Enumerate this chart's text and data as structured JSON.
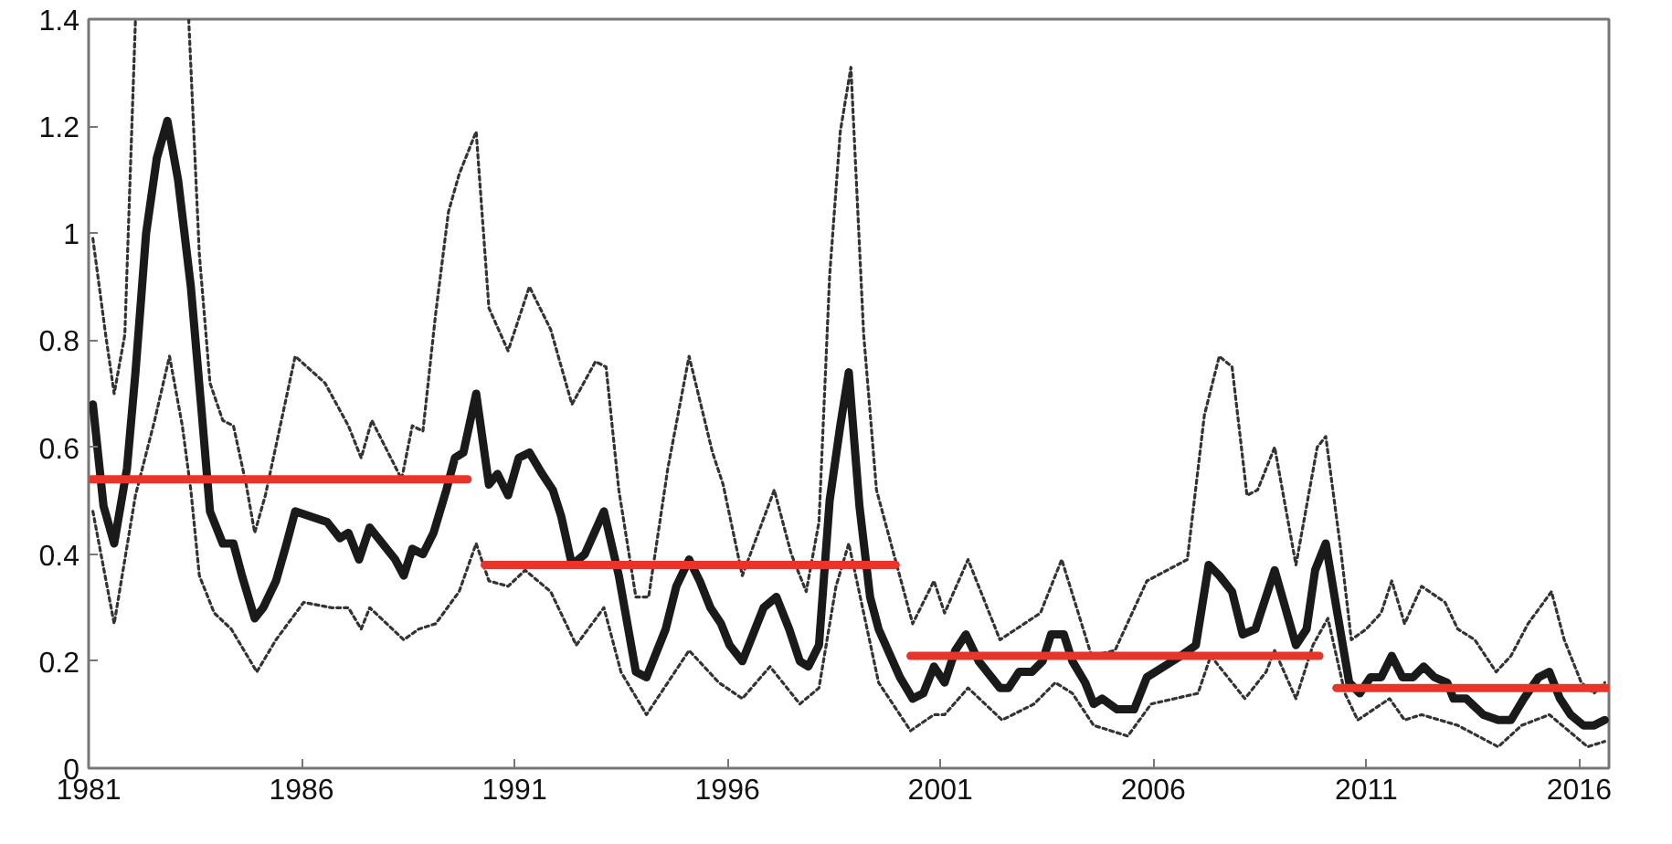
{
  "chart_data": {
    "type": "line",
    "xlim": [
      1981,
      2016.7
    ],
    "ylim": [
      0,
      1.4
    ],
    "xticks": [
      1981,
      1986,
      1991,
      1996,
      2001,
      2006,
      2011,
      2016
    ],
    "yticks": [
      0,
      0.2,
      0.4,
      0.6,
      0.8,
      1,
      1.2,
      1.4
    ],
    "grid": false,
    "series": [
      {
        "color": "#333333",
        "line_style": "dotted",
        "x": [
          1981.1,
          1981.4,
          1981.6,
          1981.85,
          1982.1,
          1982.5,
          1983.35,
          1983.6,
          1983.85,
          1984.15,
          1984.4,
          1984.7,
          1984.9,
          1985.15,
          1985.85,
          1986.55,
          1987.1,
          1987.4,
          1987.65,
          1988.35,
          1988.6,
          1988.85,
          1989.15,
          1989.45,
          1989.7,
          1990.1,
          1990.4,
          1990.85,
          1991.35,
          1991.85,
          1992.35,
          1992.9,
          1993.15,
          1993.45,
          1993.85,
          1994.15,
          1994.6,
          1995.1,
          1995.65,
          1995.9,
          1996.35,
          1997.1,
          1997.5,
          1997.85,
          1998.15,
          1998.4,
          1998.65,
          1998.9,
          1999.2,
          1999.5,
          2000.35,
          2000.85,
          2001.1,
          2001.65,
          2002.4,
          2003.35,
          2003.85,
          2004.55,
          2005.1,
          2005.85,
          2006.8,
          2007.2,
          2007.55,
          2007.85,
          2008.2,
          2008.45,
          2008.85,
          2009.35,
          2009.85,
          2010.05,
          2010.4,
          2010.65,
          2011.0,
          2011.35,
          2011.6,
          2011.9,
          2012.3,
          2012.85,
          2013.15,
          2013.55,
          2014.05,
          2014.4,
          2014.8,
          2015.35,
          2015.65,
          2016.05,
          2016.35,
          2016.6
        ],
        "values": [
          0.99,
          0.81,
          0.7,
          0.81,
          1.4,
          null,
          1.4,
          0.96,
          0.72,
          0.65,
          0.64,
          0.53,
          0.44,
          0.51,
          0.77,
          0.72,
          0.64,
          0.58,
          0.65,
          0.54,
          0.64,
          0.63,
          0.85,
          1.04,
          1.11,
          1.19,
          0.86,
          0.78,
          0.9,
          0.82,
          0.68,
          0.76,
          0.75,
          0.52,
          0.32,
          0.32,
          0.56,
          0.77,
          0.59,
          0.53,
          0.36,
          0.52,
          0.4,
          0.33,
          0.46,
          0.92,
          1.19,
          1.31,
          0.81,
          0.52,
          0.27,
          0.35,
          0.29,
          0.39,
          0.24,
          0.29,
          0.39,
          0.21,
          0.22,
          0.35,
          0.39,
          0.66,
          0.77,
          0.75,
          0.51,
          0.52,
          0.6,
          0.38,
          0.6,
          0.62,
          0.41,
          0.24,
          0.26,
          0.29,
          0.35,
          0.27,
          0.34,
          0.31,
          0.26,
          0.24,
          0.18,
          0.21,
          0.27,
          0.33,
          0.24,
          0.16,
          0.14,
          0.16
        ]
      },
      {
        "color": "#333333",
        "line_style": "dotted",
        "x": [
          1981.1,
          1981.6,
          1982.1,
          1982.55,
          1982.9,
          1983.2,
          1983.4,
          1983.6,
          1983.95,
          1984.35,
          1984.95,
          1985.4,
          1986.05,
          1986.7,
          1987.1,
          1987.4,
          1987.6,
          1988.4,
          1988.75,
          1989.15,
          1989.7,
          1990.1,
          1990.4,
          1990.85,
          1991.25,
          1991.85,
          1992.45,
          1993.1,
          1993.5,
          1994.1,
          1994.6,
          1995.1,
          1995.8,
          1996.35,
          1997.0,
          1997.7,
          1998.15,
          1998.55,
          1998.85,
          1999.2,
          1999.55,
          2000.3,
          2000.85,
          2001.1,
          2001.65,
          2002.45,
          2003.2,
          2003.7,
          2004.1,
          2004.6,
          2005.4,
          2005.95,
          2007.05,
          2007.35,
          2008.15,
          2008.65,
          2008.85,
          2009.35,
          2009.75,
          2010.1,
          2010.5,
          2010.8,
          2011.55,
          2011.9,
          2012.3,
          2013.15,
          2014.1,
          2014.65,
          2015.3,
          2015.75,
          2016.2,
          2016.6
        ],
        "values": [
          0.48,
          0.27,
          0.51,
          0.65,
          0.77,
          0.64,
          0.52,
          0.36,
          0.29,
          0.26,
          0.18,
          0.24,
          0.31,
          0.3,
          0.3,
          0.26,
          0.3,
          0.24,
          0.26,
          0.27,
          0.33,
          0.42,
          0.35,
          0.34,
          0.37,
          0.33,
          0.23,
          0.3,
          0.18,
          0.1,
          0.16,
          0.22,
          0.16,
          0.13,
          0.19,
          0.12,
          0.15,
          0.34,
          0.42,
          0.29,
          0.16,
          0.07,
          0.1,
          0.1,
          0.15,
          0.09,
          0.12,
          0.16,
          0.14,
          0.08,
          0.06,
          0.12,
          0.14,
          0.21,
          0.13,
          0.18,
          0.22,
          0.13,
          0.23,
          0.28,
          0.14,
          0.09,
          0.13,
          0.09,
          0.1,
          0.08,
          0.04,
          0.08,
          0.1,
          0.07,
          0.04,
          0.05
        ]
      },
      {
        "color": "#1a1a1a",
        "line_style": "solid",
        "x": [
          1981.1,
          1981.35,
          1981.6,
          1981.9,
          1982.1,
          1982.35,
          1982.6,
          1982.85,
          1983.1,
          1983.4,
          1983.65,
          1983.85,
          1984.15,
          1984.4,
          1984.6,
          1984.9,
          1985.1,
          1985.4,
          1985.65,
          1985.85,
          1986.6,
          1986.9,
          1987.1,
          1987.35,
          1987.6,
          1987.9,
          1988.2,
          1988.4,
          1988.6,
          1988.85,
          1989.1,
          1989.4,
          1989.6,
          1989.8,
          1990.1,
          1990.4,
          1990.6,
          1990.85,
          1991.1,
          1991.35,
          1991.65,
          1991.9,
          1992.1,
          1992.35,
          1992.65,
          1993.1,
          1993.45,
          1993.85,
          1994.1,
          1994.55,
          1994.8,
          1995.1,
          1995.35,
          1995.6,
          1995.85,
          1996.05,
          1996.35,
          1996.6,
          1996.85,
          1997.15,
          1997.45,
          1997.7,
          1997.9,
          1998.15,
          1998.4,
          1998.65,
          1998.85,
          1999.1,
          1999.35,
          1999.55,
          2000.05,
          2000.35,
          2000.6,
          2000.85,
          2001.1,
          2001.35,
          2001.6,
          2001.9,
          2002.4,
          2002.6,
          2002.85,
          2003.15,
          2003.4,
          2003.6,
          2003.9,
          2004.1,
          2004.4,
          2004.6,
          2004.8,
          2005.15,
          2005.55,
          2005.85,
          2006.25,
          2006.65,
          2007.0,
          2007.3,
          2007.55,
          2007.85,
          2008.1,
          2008.4,
          2008.85,
          2009.35,
          2009.6,
          2009.8,
          2010.05,
          2010.3,
          2010.6,
          2010.85,
          2011.1,
          2011.35,
          2011.6,
          2011.85,
          2012.1,
          2012.35,
          2012.6,
          2012.9,
          2013.05,
          2013.35,
          2013.75,
          2014.1,
          2014.4,
          2014.7,
          2015.05,
          2015.3,
          2015.55,
          2015.8,
          2016.1,
          2016.35,
          2016.6
        ],
        "values": [
          0.68,
          0.49,
          0.42,
          0.56,
          0.74,
          1.0,
          1.14,
          1.21,
          1.1,
          0.9,
          0.67,
          0.48,
          0.42,
          0.42,
          0.36,
          0.28,
          0.3,
          0.35,
          0.42,
          0.48,
          0.46,
          0.43,
          0.44,
          0.39,
          0.45,
          0.42,
          0.39,
          0.36,
          0.41,
          0.4,
          0.44,
          0.52,
          0.58,
          0.59,
          0.7,
          0.53,
          0.55,
          0.51,
          0.58,
          0.59,
          0.55,
          0.52,
          0.47,
          0.38,
          0.4,
          0.48,
          0.36,
          0.18,
          0.17,
          0.26,
          0.34,
          0.39,
          0.35,
          0.3,
          0.27,
          0.23,
          0.2,
          0.25,
          0.3,
          0.32,
          0.26,
          0.2,
          0.19,
          0.23,
          0.5,
          0.64,
          0.74,
          0.49,
          0.32,
          0.26,
          0.17,
          0.13,
          0.14,
          0.19,
          0.16,
          0.22,
          0.25,
          0.2,
          0.15,
          0.15,
          0.18,
          0.18,
          0.2,
          0.25,
          0.25,
          0.2,
          0.16,
          0.12,
          0.13,
          0.11,
          0.11,
          0.17,
          0.19,
          0.21,
          0.23,
          0.38,
          0.36,
          0.33,
          0.25,
          0.26,
          0.37,
          0.23,
          0.26,
          0.37,
          0.42,
          0.3,
          0.16,
          0.14,
          0.17,
          0.17,
          0.21,
          0.17,
          0.17,
          0.19,
          0.17,
          0.16,
          0.13,
          0.13,
          0.1,
          0.09,
          0.09,
          0.13,
          0.17,
          0.18,
          0.13,
          0.1,
          0.08,
          0.08,
          0.09
        ]
      },
      {
        "color": "#e8352c",
        "line_style": "solid",
        "x": [
          1981.05,
          1989.9
        ],
        "values": [
          0.54,
          0.54
        ]
      },
      {
        "color": "#e8352c",
        "line_style": "solid",
        "x": [
          1990.3,
          1999.95
        ],
        "values": [
          0.38,
          0.38
        ]
      },
      {
        "color": "#e8352c",
        "line_style": "solid",
        "x": [
          2000.3,
          2009.9
        ],
        "values": [
          0.21,
          0.21
        ]
      },
      {
        "color": "#e8352c",
        "line_style": "solid",
        "x": [
          2010.3,
          2016.65
        ],
        "values": [
          0.15,
          0.15
        ]
      }
    ]
  }
}
